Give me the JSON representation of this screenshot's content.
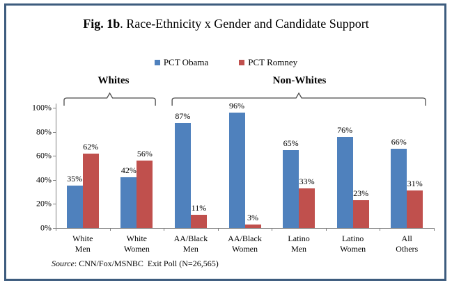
{
  "figure": {
    "title_bold": "Fig. 1b",
    "title_rest": ". Race-Ethnicity x Gender and Candidate Support",
    "source_label": "Source",
    "source_rest": ": CNN/Fox/MSNBC  Exit Poll (N=26,565)"
  },
  "legend": {
    "items": [
      {
        "label": "PCT Obama",
        "color": "#4F81BD"
      },
      {
        "label": "PCT Romney",
        "color": "#C0504D"
      }
    ]
  },
  "groups": [
    {
      "label": "Whites"
    },
    {
      "label": "Non-Whites"
    }
  ],
  "chart_data": {
    "type": "bar",
    "title": "Fig. 1b. Race-Ethnicity x Gender and Candidate Support",
    "categories": [
      [
        "White",
        "Men"
      ],
      [
        "White",
        "Women"
      ],
      [
        "AA/Black",
        "Men"
      ],
      [
        "AA/Black",
        "Women"
      ],
      [
        "Latino",
        "Men"
      ],
      [
        "Latino",
        "Women"
      ],
      [
        "All",
        "Others"
      ]
    ],
    "series": [
      {
        "name": "PCT Obama",
        "color": "#4F81BD",
        "values": [
          35,
          42,
          87,
          96,
          65,
          76,
          66
        ]
      },
      {
        "name": "PCT Romney",
        "color": "#C0504D",
        "values": [
          62,
          56,
          11,
          3,
          33,
          23,
          31
        ]
      }
    ],
    "value_label_suffix": "%",
    "ylim": [
      0,
      100
    ],
    "ytick_step": 20,
    "ytick_labels": [
      "0%",
      "20%",
      "40%",
      "60%",
      "80%",
      "100%"
    ],
    "grid": false,
    "legend_position": "top",
    "group_brackets": [
      {
        "label": "Whites",
        "from_category": 0,
        "to_category": 1
      },
      {
        "label": "Non-Whites",
        "from_category": 2,
        "to_category": 6
      }
    ],
    "source": "Source: CNN/Fox/MSNBC  Exit Poll (N=26,565)"
  }
}
